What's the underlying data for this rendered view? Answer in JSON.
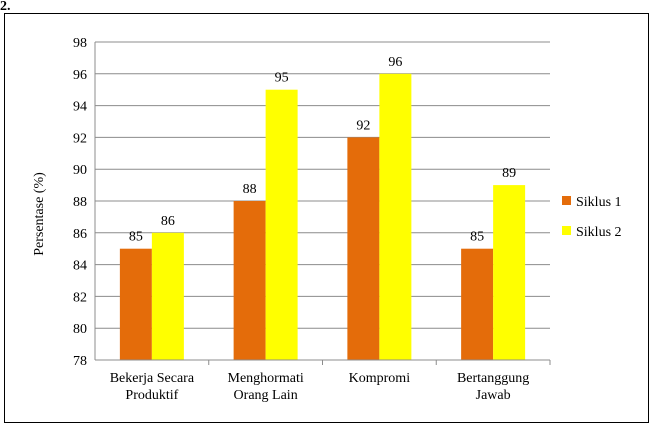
{
  "caption": "2.",
  "chart_data": {
    "type": "bar",
    "title": "",
    "xlabel": "",
    "ylabel": "Persentase (%)",
    "ylim": [
      78,
      98
    ],
    "yticks": [
      78,
      80,
      82,
      84,
      86,
      88,
      90,
      92,
      94,
      96,
      98
    ],
    "grid": true,
    "legend_position": "right",
    "categories": [
      [
        "Bekerja Secara",
        "Produktif"
      ],
      [
        "Menghormati",
        "Orang Lain"
      ],
      [
        "Kompromi"
      ],
      [
        "Bertanggung",
        "Jawab"
      ]
    ],
    "series": [
      {
        "name": "Siklus 1",
        "color": "#E46C0A",
        "values": [
          85,
          88,
          92,
          85
        ]
      },
      {
        "name": "Siklus 2",
        "color": "#FFFF00",
        "values": [
          86,
          95,
          96,
          89
        ]
      }
    ]
  }
}
